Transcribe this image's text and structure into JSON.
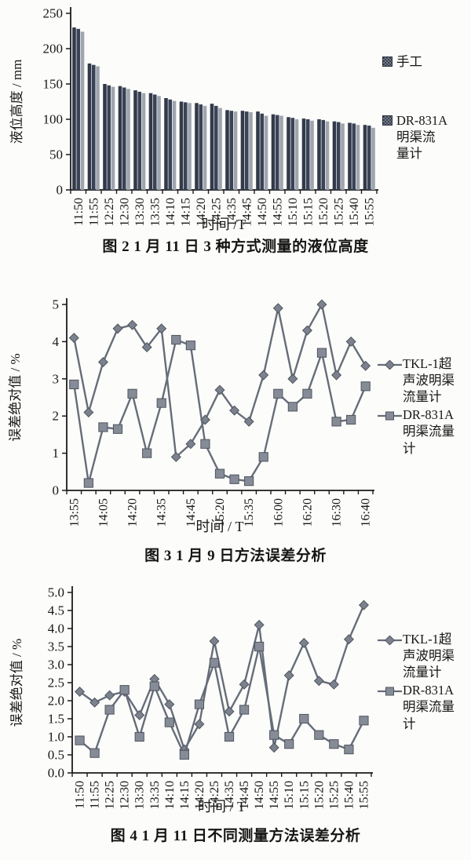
{
  "chart_data": [
    {
      "type": "bar",
      "title": "图 2  1 月 11 日 3 种方式测量的液位高度",
      "xlabel": "时间 /T",
      "ylabel": "液位高度 / mm",
      "ylim": [
        0,
        250
      ],
      "y_tick_labels": [
        "0",
        "50",
        "100",
        "150",
        "200",
        "250"
      ],
      "grid": false,
      "legend_position": "right",
      "categories": [
        "11:50",
        "11:55",
        "12:25",
        "12:30",
        "13:30",
        "13:35",
        "14:10",
        "14:15",
        "14:20",
        "14:25",
        "14:35",
        "14:45",
        "14:50",
        "14:55",
        "15:10",
        "15:15",
        "15:20",
        "15:25",
        "15:40",
        "15:55"
      ],
      "series": [
        {
          "name": "手工",
          "color": "#323a4a",
          "values": [
            230,
            179,
            150,
            147,
            141,
            137,
            130,
            125,
            123,
            122,
            113,
            112,
            111,
            107,
            103,
            101,
            100,
            97,
            95,
            92
          ]
        },
        {
          "name": "",
          "color": "#3a4356",
          "values": [
            228,
            177,
            148,
            145,
            139,
            135,
            128,
            124,
            121,
            119,
            112,
            111,
            108,
            106,
            102,
            100,
            99,
            96,
            94,
            91
          ]
        },
        {
          "name": "DR-831A明渠流量计",
          "color": "#9fa5ae",
          "values": [
            224,
            175,
            146,
            143,
            137,
            133,
            126,
            123,
            119,
            116,
            111,
            110,
            105,
            105,
            100,
            98,
            97,
            94,
            92,
            88
          ]
        }
      ],
      "legend": [
        {
          "label": "手工",
          "marker": "checkered-square"
        },
        {
          "label": "DR-831A\n明渠流\n量计",
          "marker": "checkered-square"
        }
      ]
    },
    {
      "type": "line",
      "title": "图 3  1 月 9 日方法误差分析",
      "xlabel": "时间 / T",
      "ylabel": "误差绝对值 / %",
      "ylim": [
        0,
        5
      ],
      "y_tick_labels": [
        "0",
        "1",
        "2",
        "3",
        "4",
        "5"
      ],
      "grid": false,
      "legend_position": "right",
      "categories": [
        "13:55",
        "",
        "14:05",
        "",
        "14:20",
        "",
        "14:35",
        "",
        "14:45",
        "",
        "15:20",
        "",
        "15:35",
        "",
        "16:00",
        "",
        "16:20",
        "",
        "16:30",
        "",
        "16:40"
      ],
      "series": [
        {
          "name": "TKL-1超声波明渠流量计",
          "marker": "diamond",
          "color": "#666d79",
          "values": [
            4.1,
            2.1,
            3.45,
            4.35,
            4.45,
            3.85,
            4.35,
            0.9,
            1.25,
            1.9,
            2.7,
            2.15,
            1.85,
            3.1,
            4.9,
            3.0,
            4.3,
            5.0,
            3.1,
            4.0,
            3.35
          ]
        },
        {
          "name": "DR-831A明渠流量计",
          "marker": "square",
          "color": "#666d79",
          "values": [
            2.85,
            0.2,
            1.7,
            1.65,
            2.6,
            1.0,
            2.35,
            4.05,
            3.9,
            1.25,
            0.45,
            0.3,
            0.25,
            0.9,
            2.6,
            2.25,
            2.6,
            3.7,
            1.85,
            1.9,
            2.8
          ]
        }
      ],
      "legend": [
        {
          "label": "TKL-1超\n声波明渠\n流量计",
          "marker": "diamond-line"
        },
        {
          "label": "DR-831A\n明渠流量\n计",
          "marker": "square-line"
        }
      ]
    },
    {
      "type": "line",
      "title": "图 4  1 月 11 日不同测量方法误差分析",
      "xlabel": "时间 / T",
      "ylabel": "误差绝对值 / %",
      "ylim": [
        0,
        5
      ],
      "y_tick_labels": [
        "0.0",
        "0.5",
        "1.0",
        "1.5",
        "2.0",
        "2.5",
        "3.0",
        "3.5",
        "4.0",
        "4.5",
        "5.0"
      ],
      "grid": false,
      "legend_position": "right",
      "categories": [
        "11:50",
        "11:55",
        "12:25",
        "12:30",
        "13:30",
        "13:35",
        "14:10",
        "14:15",
        "14:20",
        "14:25",
        "14:35",
        "14:45",
        "14:50",
        "14:55",
        "15:10",
        "15:15",
        "15:20",
        "15:25",
        "15:40",
        "15:55"
      ],
      "series": [
        {
          "name": "TKL-1超声波明渠流量计",
          "marker": "diamond",
          "color": "#666d79",
          "values": [
            2.25,
            1.95,
            2.15,
            2.25,
            1.6,
            2.6,
            1.9,
            0.65,
            1.35,
            3.65,
            1.7,
            2.45,
            4.1,
            0.7,
            2.7,
            3.6,
            2.55,
            2.45,
            3.7,
            4.65
          ]
        },
        {
          "name": "DR-831A明渠流量计",
          "marker": "square",
          "color": "#666d79",
          "values": [
            0.9,
            0.55,
            1.75,
            2.3,
            1.0,
            2.4,
            1.4,
            0.5,
            1.9,
            3.05,
            1.0,
            1.75,
            3.5,
            1.05,
            0.8,
            1.5,
            1.05,
            0.8,
            0.65,
            1.45
          ]
        }
      ],
      "legend": [
        {
          "label": "TKL-1超\n声波明渠\n流量计",
          "marker": "diamond-line"
        },
        {
          "label": "DR-831A\n明渠流量\n计",
          "marker": "square-line"
        }
      ]
    }
  ]
}
